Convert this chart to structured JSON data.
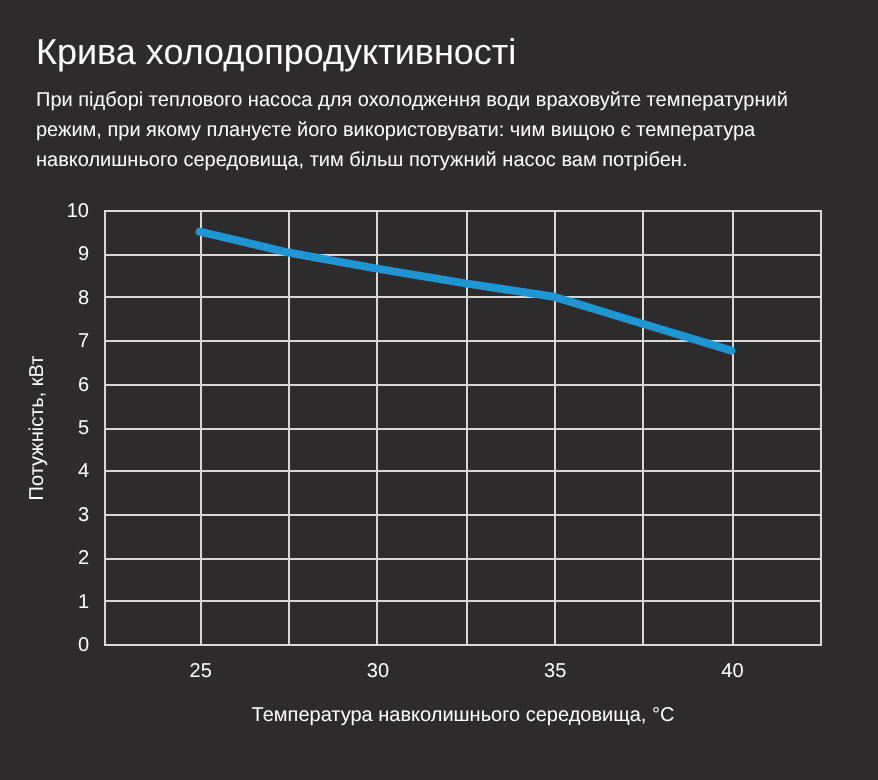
{
  "chart_data": {
    "type": "line",
    "title": "Крива холодопродуктивності",
    "subtitle": "При підборі теплового насоса для охолодження води враховуйте температурний режим, при якому плануєте його використовувати: чим вищою є температура навколишнього середовища, тим більш потужний насос вам потрібен.",
    "xlabel": "Температура навколишнього середовища, °C",
    "ylabel": "Потужність, кВт",
    "x": [
      25,
      27.5,
      30,
      32.5,
      35,
      37.5,
      40
    ],
    "series": [
      {
        "color": "#1e96d4",
        "values": [
          9.5,
          9.02,
          8.65,
          8.31,
          8.0,
          7.38,
          6.76
        ]
      }
    ],
    "xlim": [
      22.3,
      42.5
    ],
    "xticks": [
      25,
      {
        "value": 27.5,
        "label": null
      },
      30,
      {
        "value": 32.5,
        "label": null
      },
      35,
      {
        "value": 37.5,
        "label": null
      },
      40
    ],
    "ylim": [
      0,
      10
    ],
    "yticks": [
      0,
      1,
      2,
      3,
      4,
      5,
      6,
      7,
      8,
      9,
      10
    ],
    "grid": true,
    "marker": "none",
    "line_style": "solid"
  }
}
